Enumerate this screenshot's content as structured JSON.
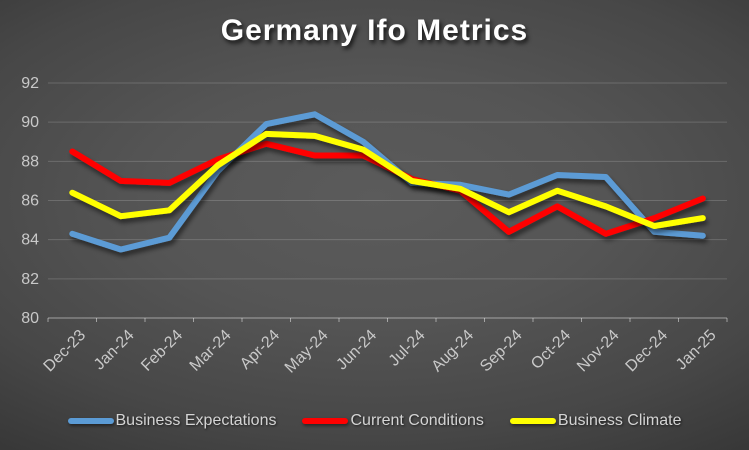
{
  "title": "Germany Ifo Metrics",
  "chart_data": {
    "type": "line",
    "title": "Germany Ifo Metrics",
    "categories": [
      "Dec-23",
      "Jan-24",
      "Feb-24",
      "Mar-24",
      "Apr-24",
      "May-24",
      "Jun-24",
      "Jul-24",
      "Aug-24",
      "Sep-24",
      "Oct-24",
      "Nov-24",
      "Dec-24",
      "Jan-25"
    ],
    "series": [
      {
        "name": "Business Expectations",
        "color": "#5B9BD5",
        "values": [
          84.3,
          83.5,
          84.1,
          87.5,
          89.9,
          90.4,
          89.0,
          86.9,
          86.8,
          86.3,
          87.3,
          87.2,
          84.4,
          84.2
        ]
      },
      {
        "name": "Current Conditions",
        "color": "#FF0000",
        "values": [
          88.5,
          87.0,
          86.9,
          88.1,
          88.9,
          88.3,
          88.3,
          87.1,
          86.5,
          84.4,
          85.7,
          84.3,
          85.1,
          86.1
        ]
      },
      {
        "name": "Business Climate",
        "color": "#FFFF00",
        "values": [
          86.4,
          85.2,
          85.5,
          87.8,
          89.4,
          89.3,
          88.6,
          87.0,
          86.6,
          85.4,
          86.5,
          85.7,
          84.7,
          85.1
        ]
      }
    ],
    "ylim": [
      80,
      92
    ],
    "yticks": [
      80,
      82,
      84,
      86,
      88,
      90,
      92
    ],
    "grid": true,
    "legend_position": "bottom",
    "xlabel": "",
    "ylabel": ""
  },
  "colors": {
    "background_center": "#595959",
    "background_edge": "#262626",
    "axis_text": "#c9c9c9",
    "title_text": "#ffffff"
  }
}
